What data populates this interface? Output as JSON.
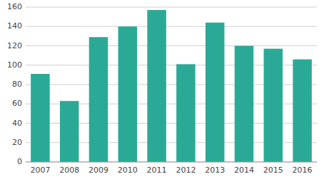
{
  "chart_data": {
    "type": "bar",
    "categories": [
      "2007",
      "2008",
      "2009",
      "2010",
      "2011",
      "2012",
      "2013",
      "2014",
      "2015",
      "2016"
    ],
    "values": [
      91,
      63,
      129,
      140,
      157,
      101,
      144,
      120,
      117,
      106
    ],
    "color": "#2aaa96",
    "ylim": [
      0,
      160
    ],
    "yticks": [
      0,
      20,
      40,
      60,
      80,
      100,
      120,
      140,
      160
    ],
    "grid": true
  }
}
